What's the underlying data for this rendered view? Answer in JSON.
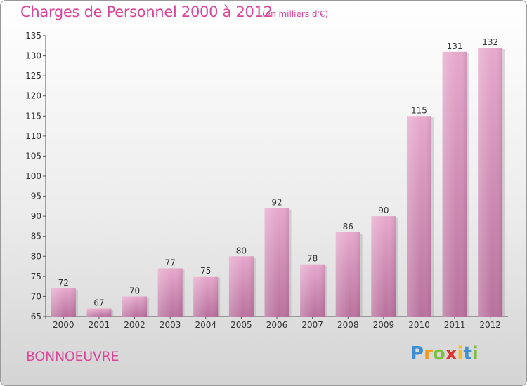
{
  "title": "Charges de Personnel 2000 à 2012",
  "unit": "(en milliers d'€)",
  "commune": "BONNOEUVRE",
  "logo": {
    "letters": [
      "P",
      "r",
      "o",
      "x",
      "i",
      "t",
      "i"
    ],
    "colors": [
      "#3d8fd1",
      "#f29a1f",
      "#7fbf3f",
      "#e0342f",
      "#f2c01f",
      "#3d8fd1",
      "#7fbf3f"
    ]
  },
  "colors": {
    "accent": "#d9479a",
    "bar_light": "#e6a8cc",
    "bar_dark": "#b8709c"
  },
  "chart_data": {
    "type": "bar",
    "title": "Charges de Personnel 2000 à 2012",
    "ylabel": "",
    "xlabel": "",
    "categories": [
      "2000",
      "2001",
      "2002",
      "2003",
      "2004",
      "2005",
      "2006",
      "2007",
      "2008",
      "2009",
      "2010",
      "2011",
      "2012"
    ],
    "values": [
      72,
      67,
      70,
      77,
      75,
      80,
      92,
      78,
      86,
      90,
      115,
      131,
      132
    ],
    "ylim": [
      65,
      135
    ],
    "yticks": [
      65,
      70,
      75,
      80,
      85,
      90,
      95,
      100,
      105,
      110,
      115,
      120,
      125,
      130,
      135
    ],
    "grid": false
  }
}
